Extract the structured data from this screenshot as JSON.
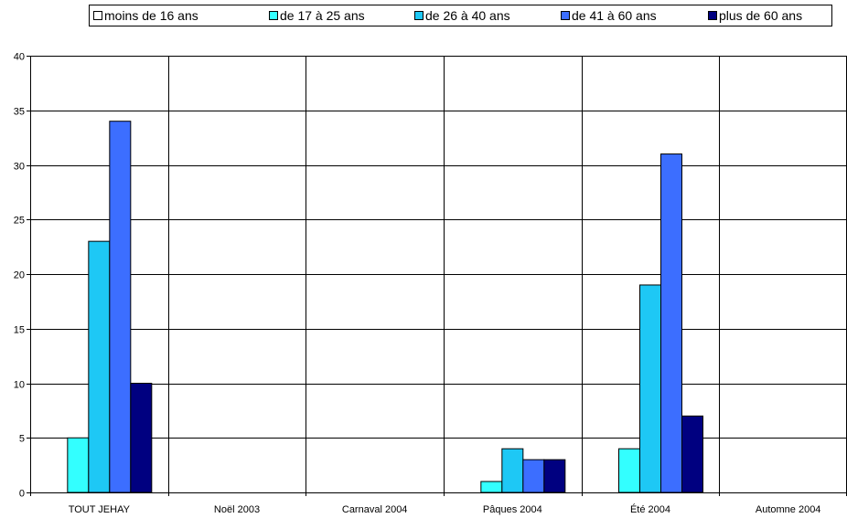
{
  "chart_data": {
    "type": "bar",
    "categories": [
      "TOUT JEHAY",
      "Noël 2003",
      "Carnaval 2004",
      "Pâques 2004",
      "Été 2004",
      "Automne 2004"
    ],
    "series": [
      {
        "name": "moins de 16 ans",
        "color": "#ffffff",
        "values": [
          0,
          0,
          0,
          0,
          0,
          0
        ]
      },
      {
        "name": "de 17 à 25 ans",
        "color": "#33ffff",
        "values": [
          5,
          0,
          0,
          1,
          4,
          0
        ]
      },
      {
        "name": "de 26 à 40 ans",
        "color": "#1ec8f5",
        "values": [
          23,
          0,
          0,
          4,
          19,
          0
        ]
      },
      {
        "name": "de 41 à 60 ans",
        "color": "#3c6eff",
        "values": [
          34,
          0,
          0,
          3,
          31,
          0
        ]
      },
      {
        "name": "plus de 60 ans",
        "color": "#000080",
        "values": [
          10,
          0,
          0,
          3,
          7,
          0
        ]
      }
    ],
    "ylim": [
      0,
      40
    ],
    "yticks": [
      0,
      5,
      10,
      15,
      20,
      25,
      30,
      35,
      40
    ],
    "title": "",
    "xlabel": "",
    "ylabel": "",
    "grid": true,
    "legend_position": "top"
  }
}
